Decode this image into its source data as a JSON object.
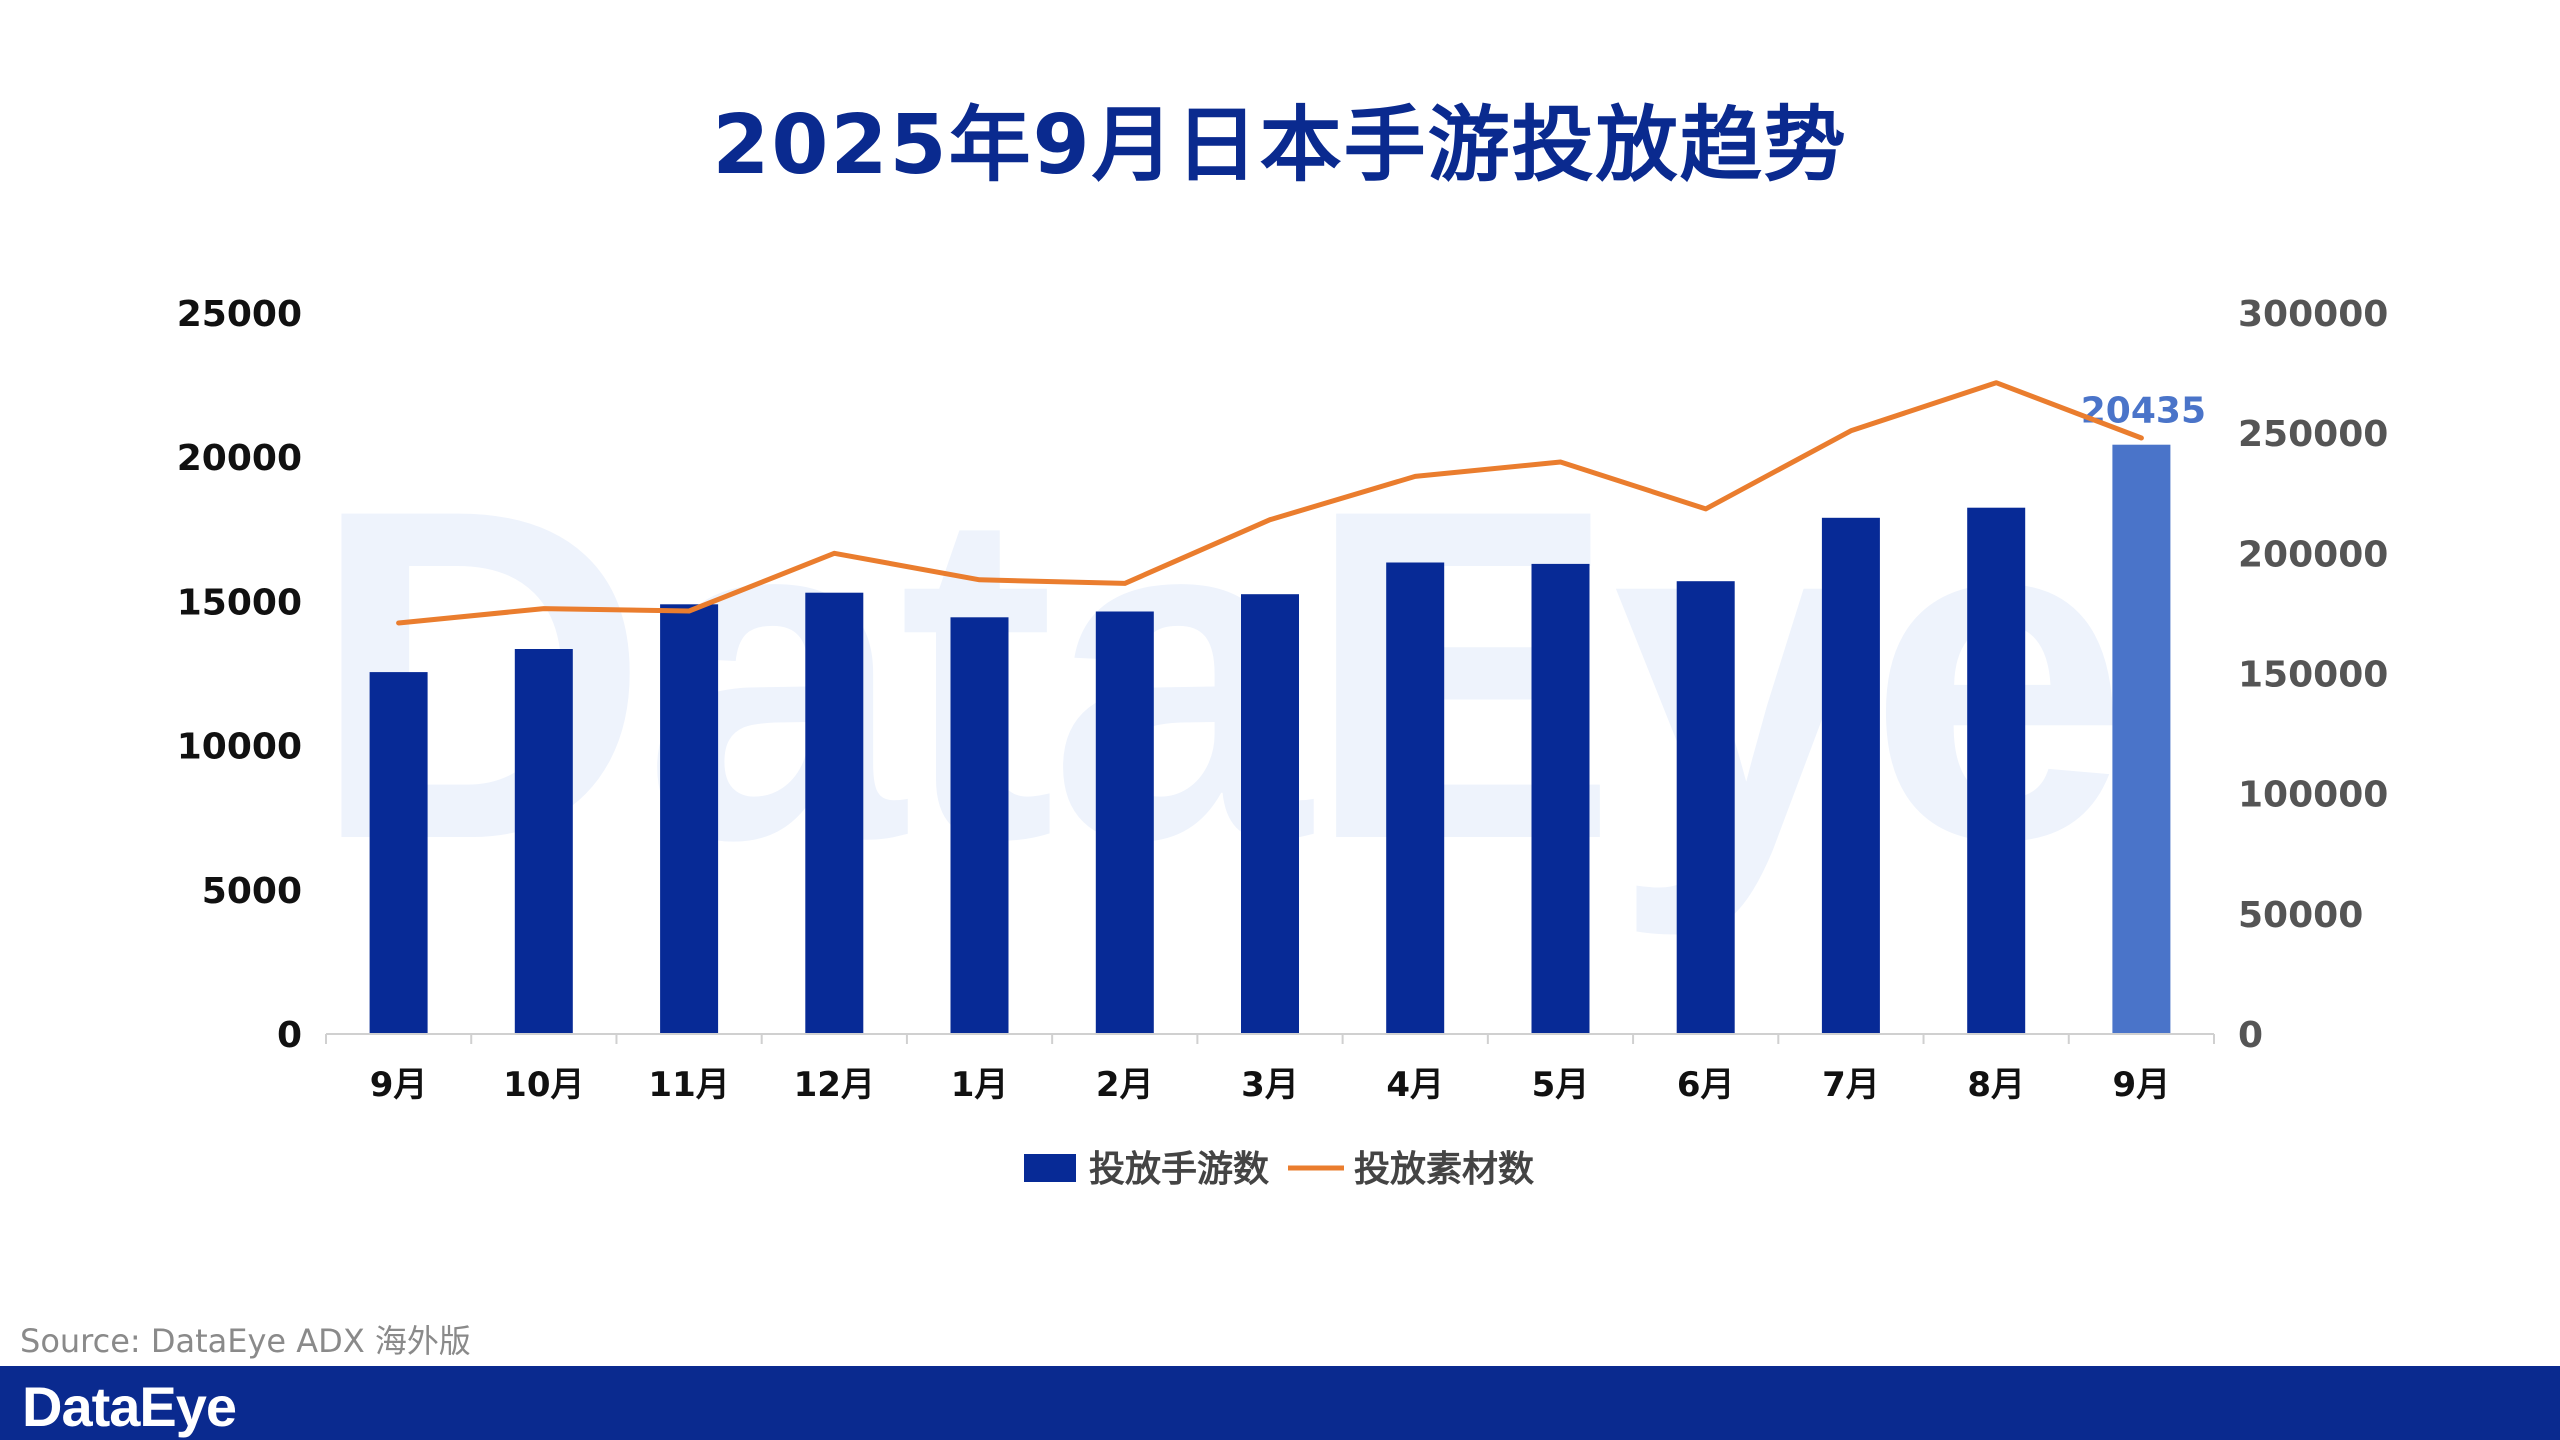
{
  "title": "2025年9月日本手游投放趋势",
  "watermark": "DataEye",
  "source": "Source: DataEye ADX 海外版",
  "footer_logo": "DataEye",
  "colors": {
    "bar": "#072a96",
    "bar_highlight": "#4a74c9",
    "line": "#ea7d2e",
    "title": "#0a2a8f",
    "footer": "#0a2a8f"
  },
  "chart_data": {
    "type": "bar",
    "categories": [
      "9月",
      "10月",
      "11月",
      "12月",
      "1月",
      "2月",
      "3月",
      "4月",
      "5月",
      "6月",
      "7月",
      "8月",
      "9月"
    ],
    "series": [
      {
        "name": "投放手游数",
        "axis": "left",
        "values": [
          12550,
          13350,
          14900,
          15300,
          14450,
          14650,
          15250,
          16350,
          16300,
          15700,
          17900,
          18250,
          20435
        ],
        "highlight_last": true
      },
      {
        "name": "投放素材数",
        "axis": "right",
        "type": "line",
        "values": [
          171000,
          177000,
          176000,
          200000,
          189000,
          187500,
          214000,
          232000,
          238000,
          218500,
          251000,
          271000,
          248000
        ]
      }
    ],
    "y_left": {
      "min": 0,
      "max": 25000,
      "ticks": [
        "0",
        "5000",
        "10000",
        "15000",
        "20000",
        "25000"
      ]
    },
    "y_right": {
      "min": 0,
      "max": 300000,
      "ticks": [
        "0",
        "50000",
        "100000",
        "150000",
        "200000",
        "250000",
        "300000"
      ]
    },
    "data_label": "20435",
    "legend_position": "bottom",
    "grid": false
  }
}
